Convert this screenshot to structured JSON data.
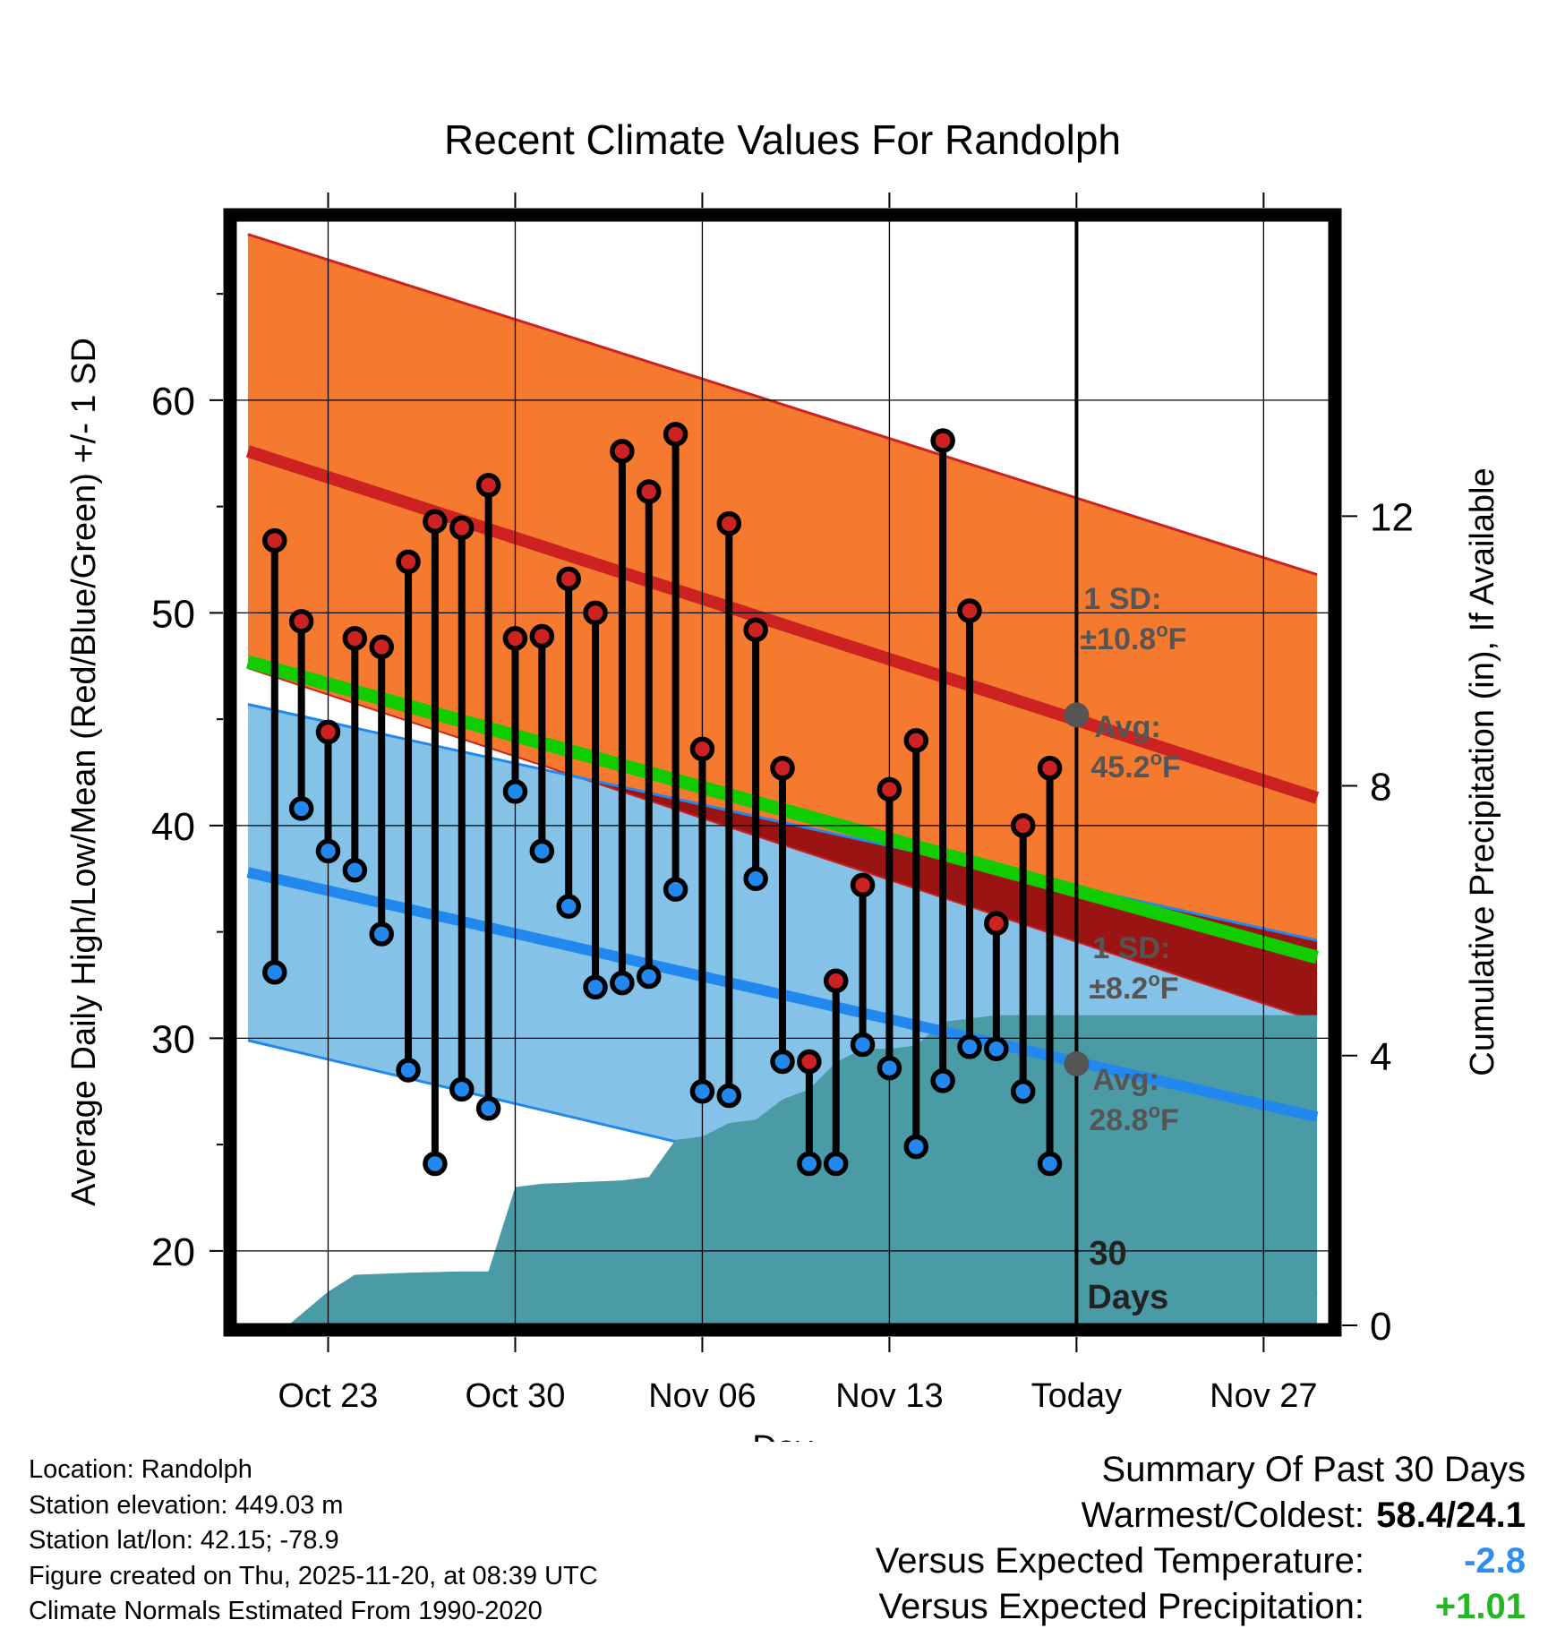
{
  "chart_data": {
    "type": "line",
    "title": "Recent Climate Values For Randolph",
    "xlabel": "Day",
    "ylabel": "Average Daily High/Low/Mean (Red/Blue/Green) +/- 1 SD",
    "y2label": "Cumulative Precipitation (in), If Available",
    "xlim": [
      -3.5,
      37.5
    ],
    "ylim": [
      16.5,
      68.5
    ],
    "y2lim": [
      0,
      16.4
    ],
    "x_ticks": [
      0,
      7,
      14,
      21,
      28,
      35
    ],
    "x_tick_labels": [
      "Oct 23",
      "Oct 30",
      "Nov 06",
      "Nov 13",
      "Today",
      "Nov 27"
    ],
    "y_ticks": [
      20,
      30,
      40,
      50,
      60
    ],
    "y_tick_labels": [
      "20",
      "30",
      "40",
      "50",
      "60"
    ],
    "y2_ticks": [
      0,
      4,
      8,
      12
    ],
    "y2_tick_labels": [
      "0",
      "4",
      "8",
      "12"
    ],
    "today_x": 28,
    "days_label": "30\nDays",
    "normals": {
      "x_range": [
        -3,
        37
      ],
      "high_avg": [
        57.6,
        41.3
      ],
      "high_sd": [
        10.2,
        10.5
      ],
      "low_avg": [
        37.8,
        26.3
      ],
      "low_sd": [
        7.9,
        8.3
      ],
      "mean_avg": [
        47.7,
        33.8
      ]
    },
    "annotations": {
      "high_sd_label": "1 SD:",
      "high_sd_value": "±10.8°F",
      "high_avg_label": "Avg:",
      "high_avg_value": "45.2°F",
      "low_sd_label": "1 SD:",
      "low_sd_value": "±8.2°F",
      "low_avg_label": "Avg:",
      "low_avg_value": "28.8°F",
      "high_avg_at_today": 45.2,
      "low_avg_at_today": 28.8
    },
    "series": [
      {
        "name": "High",
        "color": "#cc2222",
        "x": [
          -2,
          -1,
          0,
          1,
          2,
          3,
          4,
          5,
          6,
          7,
          8,
          9,
          10,
          11,
          12,
          13,
          14,
          15,
          16,
          17,
          18,
          19,
          20,
          21,
          22,
          23,
          24,
          25,
          26,
          27
        ],
        "values": [
          53.4,
          49.6,
          44.4,
          48.8,
          48.4,
          52.4,
          54.3,
          54.0,
          56.0,
          48.8,
          48.9,
          51.6,
          50.0,
          57.6,
          55.7,
          58.4,
          43.6,
          54.2,
          49.2,
          42.7,
          28.9,
          32.7,
          37.2,
          41.7,
          44.0,
          58.1,
          50.1,
          35.4,
          40.0,
          42.7
        ]
      },
      {
        "name": "Low",
        "color": "#2288ee",
        "x": [
          -2,
          -1,
          0,
          1,
          2,
          3,
          4,
          5,
          6,
          7,
          8,
          9,
          10,
          11,
          12,
          13,
          14,
          15,
          16,
          17,
          18,
          19,
          20,
          21,
          22,
          23,
          24,
          25,
          26,
          27
        ],
        "values": [
          33.1,
          40.8,
          38.8,
          37.9,
          34.9,
          28.5,
          24.1,
          27.6,
          26.7,
          41.6,
          38.8,
          36.2,
          32.4,
          32.6,
          32.9,
          37.0,
          27.5,
          27.3,
          37.5,
          28.9,
          24.1,
          24.1,
          29.7,
          28.6,
          24.9,
          28.0,
          29.6,
          29.5,
          27.5,
          24.1
        ]
      },
      {
        "name": "Cumulative Precipitation",
        "color": "#4a9ba5",
        "x": [
          -3,
          -1.5,
          0,
          1,
          3,
          5,
          6,
          7,
          8,
          11,
          12,
          13,
          14,
          15,
          16,
          17,
          18,
          19,
          20,
          21,
          22,
          23,
          24,
          25,
          37
        ],
        "values": [
          0,
          0,
          0.5,
          0.75,
          0.78,
          0.8,
          0.8,
          2.05,
          2.1,
          2.15,
          2.2,
          2.75,
          2.8,
          3.0,
          3.05,
          3.35,
          3.5,
          3.9,
          4.1,
          4.1,
          4.15,
          4.5,
          4.55,
          4.6,
          4.6
        ]
      }
    ]
  },
  "summary": {
    "title": "Summary Of Past 30 Days",
    "warmest_label": "Warmest/Coldest:",
    "warmest_value": "58.4/24.1",
    "temp_label": "Versus Expected Temperature:",
    "temp_value": "-2.8",
    "temp_color": "#2f8ff0",
    "precip_label": "Versus Expected Precipitation:",
    "precip_value": "+1.01",
    "precip_color": "#22b822"
  },
  "info": {
    "location": "Location: Randolph",
    "elevation": "Station elevation: 449.03 m",
    "latlon": "Station lat/lon: 42.15; -78.9",
    "created": "Figure created on Thu, 2025-11-20, at 08:39 UTC",
    "normals": "Climate Normals Estimated From 1990-2020"
  },
  "colors": {
    "high_band": "#f5792e",
    "high_line": "#cc2222",
    "overlap": "#9b1414",
    "low_band": "#85c2e8",
    "low_line": "#2288ee",
    "mean_line": "#11cc00",
    "precip": "#4a9ba5",
    "annotation": "#555555"
  }
}
